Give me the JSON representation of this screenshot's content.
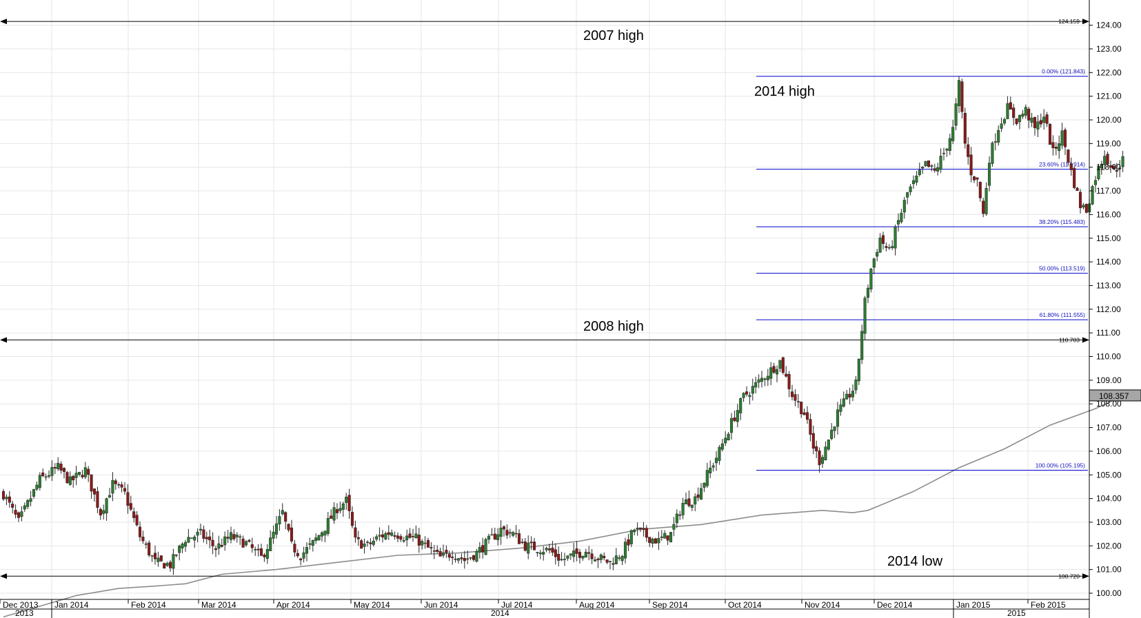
{
  "chart_data": {
    "type": "candlestick",
    "title": "",
    "xlabel": "",
    "ylabel": "",
    "ylim": [
      99.6,
      124.6
    ],
    "y_ticks": [
      "100.00",
      "101.00",
      "102.00",
      "103.00",
      "104.00",
      "105.00",
      "106.00",
      "107.00",
      "108.00",
      "109.00",
      "110.00",
      "111.00",
      "112.00",
      "113.00",
      "114.00",
      "115.00",
      "116.00",
      "117.00",
      "118.00",
      "119.00",
      "120.00",
      "121.00",
      "122.00",
      "123.00",
      "124.00"
    ],
    "months": [
      "Dec 2013",
      "Jan 2014",
      "Feb 2014",
      "Mar 2014",
      "Apr 2014",
      "May 2014",
      "Jun 2014",
      "Jul 2014",
      "Aug 2014",
      "Sep 2014",
      "Oct 2014",
      "Nov 2014",
      "Dec 2014",
      "Jan 2015",
      "Feb 2015"
    ],
    "years": [
      "2013",
      "2014",
      "2015"
    ],
    "grid": true,
    "up_color": "#2e7d32",
    "down_color": "#8b1a1a",
    "ma_color": "#8c8c8c",
    "fib_color": "#0000cc",
    "ohlc_anchors": [
      [
        0,
        104.2
      ],
      [
        5,
        103.0
      ],
      [
        12,
        104.8
      ],
      [
        18,
        105.3
      ],
      [
        22,
        104.7
      ],
      [
        27,
        105.2
      ],
      [
        32,
        103.4
      ],
      [
        36,
        104.6
      ],
      [
        40,
        104.2
      ],
      [
        45,
        102.4
      ],
      [
        50,
        101.3
      ],
      [
        55,
        101.2
      ],
      [
        60,
        102.3
      ],
      [
        65,
        102.5
      ],
      [
        70,
        101.9
      ],
      [
        75,
        102.4
      ],
      [
        80,
        102.1
      ],
      [
        85,
        101.5
      ],
      [
        88,
        102.2
      ],
      [
        92,
        103.4
      ],
      [
        95,
        102.0
      ],
      [
        98,
        101.6
      ],
      [
        102,
        102.1
      ],
      [
        106,
        102.8
      ],
      [
        110,
        103.6
      ],
      [
        113,
        103.9
      ],
      [
        116,
        102.2
      ],
      [
        120,
        102.0
      ],
      [
        124,
        102.4
      ],
      [
        128,
        102.6
      ],
      [
        132,
        102.4
      ],
      [
        136,
        102.3
      ],
      [
        140,
        101.9
      ],
      [
        144,
        101.5
      ],
      [
        148,
        101.7
      ],
      [
        152,
        101.4
      ],
      [
        156,
        101.7
      ],
      [
        160,
        102.2
      ],
      [
        164,
        102.7
      ],
      [
        168,
        102.5
      ],
      [
        172,
        102.0
      ],
      [
        176,
        101.9
      ],
      [
        180,
        101.8
      ],
      [
        184,
        101.4
      ],
      [
        188,
        101.6
      ],
      [
        192,
        101.8
      ],
      [
        196,
        101.5
      ],
      [
        200,
        101.3
      ],
      [
        204,
        101.7
      ],
      [
        208,
        102.7
      ],
      [
        212,
        102.4
      ],
      [
        216,
        102.2
      ],
      [
        220,
        102.5
      ],
      [
        224,
        103.8
      ],
      [
        228,
        104.0
      ],
      [
        232,
        105.0
      ],
      [
        236,
        106.0
      ],
      [
        240,
        107.2
      ],
      [
        244,
        108.3
      ],
      [
        248,
        108.8
      ],
      [
        252,
        109.3
      ],
      [
        256,
        109.8
      ],
      [
        260,
        108.4
      ],
      [
        264,
        107.6
      ],
      [
        267,
        106.2
      ],
      [
        269,
        105.6
      ],
      [
        272,
        106.5
      ],
      [
        275,
        107.6
      ],
      [
        278,
        108.2
      ],
      [
        281,
        108.8
      ],
      [
        284,
        112.3
      ],
      [
        286,
        113.7
      ],
      [
        289,
        115.0
      ],
      [
        292,
        114.4
      ],
      [
        295,
        115.7
      ],
      [
        298,
        116.9
      ],
      [
        301,
        117.5
      ],
      [
        304,
        118.1
      ],
      [
        307,
        117.8
      ],
      [
        310,
        118.6
      ],
      [
        313,
        119.6
      ],
      [
        315,
        121.5
      ],
      [
        317,
        119.0
      ],
      [
        319,
        117.8
      ],
      [
        321,
        117.4
      ],
      [
        323,
        116.0
      ],
      [
        325,
        118.4
      ],
      [
        328,
        119.7
      ],
      [
        331,
        120.5
      ],
      [
        334,
        120.0
      ],
      [
        337,
        120.4
      ],
      [
        340,
        119.6
      ],
      [
        343,
        120.2
      ],
      [
        346,
        118.6
      ],
      [
        349,
        119.4
      ],
      [
        352,
        117.8
      ],
      [
        355,
        116.4
      ],
      [
        357,
        116.2
      ],
      [
        360,
        117.6
      ],
      [
        363,
        118.6
      ],
      [
        366,
        117.8
      ],
      [
        369,
        118.3
      ]
    ],
    "moving_average": [
      [
        0,
        99.0
      ],
      [
        24,
        99.9
      ],
      [
        38,
        100.2
      ],
      [
        50,
        100.3
      ],
      [
        60,
        100.4
      ],
      [
        72,
        100.8
      ],
      [
        90,
        101.0
      ],
      [
        110,
        101.3
      ],
      [
        130,
        101.6
      ],
      [
        150,
        101.7
      ],
      [
        170,
        101.9
      ],
      [
        190,
        102.2
      ],
      [
        210,
        102.7
      ],
      [
        230,
        102.9
      ],
      [
        250,
        103.3
      ],
      [
        270,
        103.5
      ],
      [
        280,
        103.4
      ],
      [
        285,
        103.5
      ],
      [
        300,
        104.3
      ],
      [
        315,
        105.3
      ],
      [
        330,
        106.1
      ],
      [
        345,
        107.1
      ],
      [
        360,
        107.8
      ],
      [
        370,
        108.4
      ]
    ],
    "last_value": {
      "label": "108.357",
      "value": 108.357
    },
    "horizontal_lines": [
      {
        "value": 124.159,
        "label": "124.159"
      },
      {
        "value": 110.703,
        "label": "110.703"
      },
      {
        "value": 100.72,
        "label": "100.720"
      }
    ],
    "fibonacci": [
      {
        "value": 121.843,
        "label": "0.00% (121.843)"
      },
      {
        "value": 117.914,
        "label": "23.60% (117.914)"
      },
      {
        "value": 115.483,
        "label": "38.20% (115.483)"
      },
      {
        "value": 113.519,
        "label": "50.00% (113.519)"
      },
      {
        "value": 111.555,
        "label": "61.80% (111.555)"
      },
      {
        "value": 105.195,
        "label": "100.00% (105.195)"
      }
    ],
    "annotations": [
      {
        "text": "2007 high"
      },
      {
        "text": "2014 high"
      },
      {
        "text": "2008 high"
      },
      {
        "text": "2014 low"
      }
    ]
  }
}
